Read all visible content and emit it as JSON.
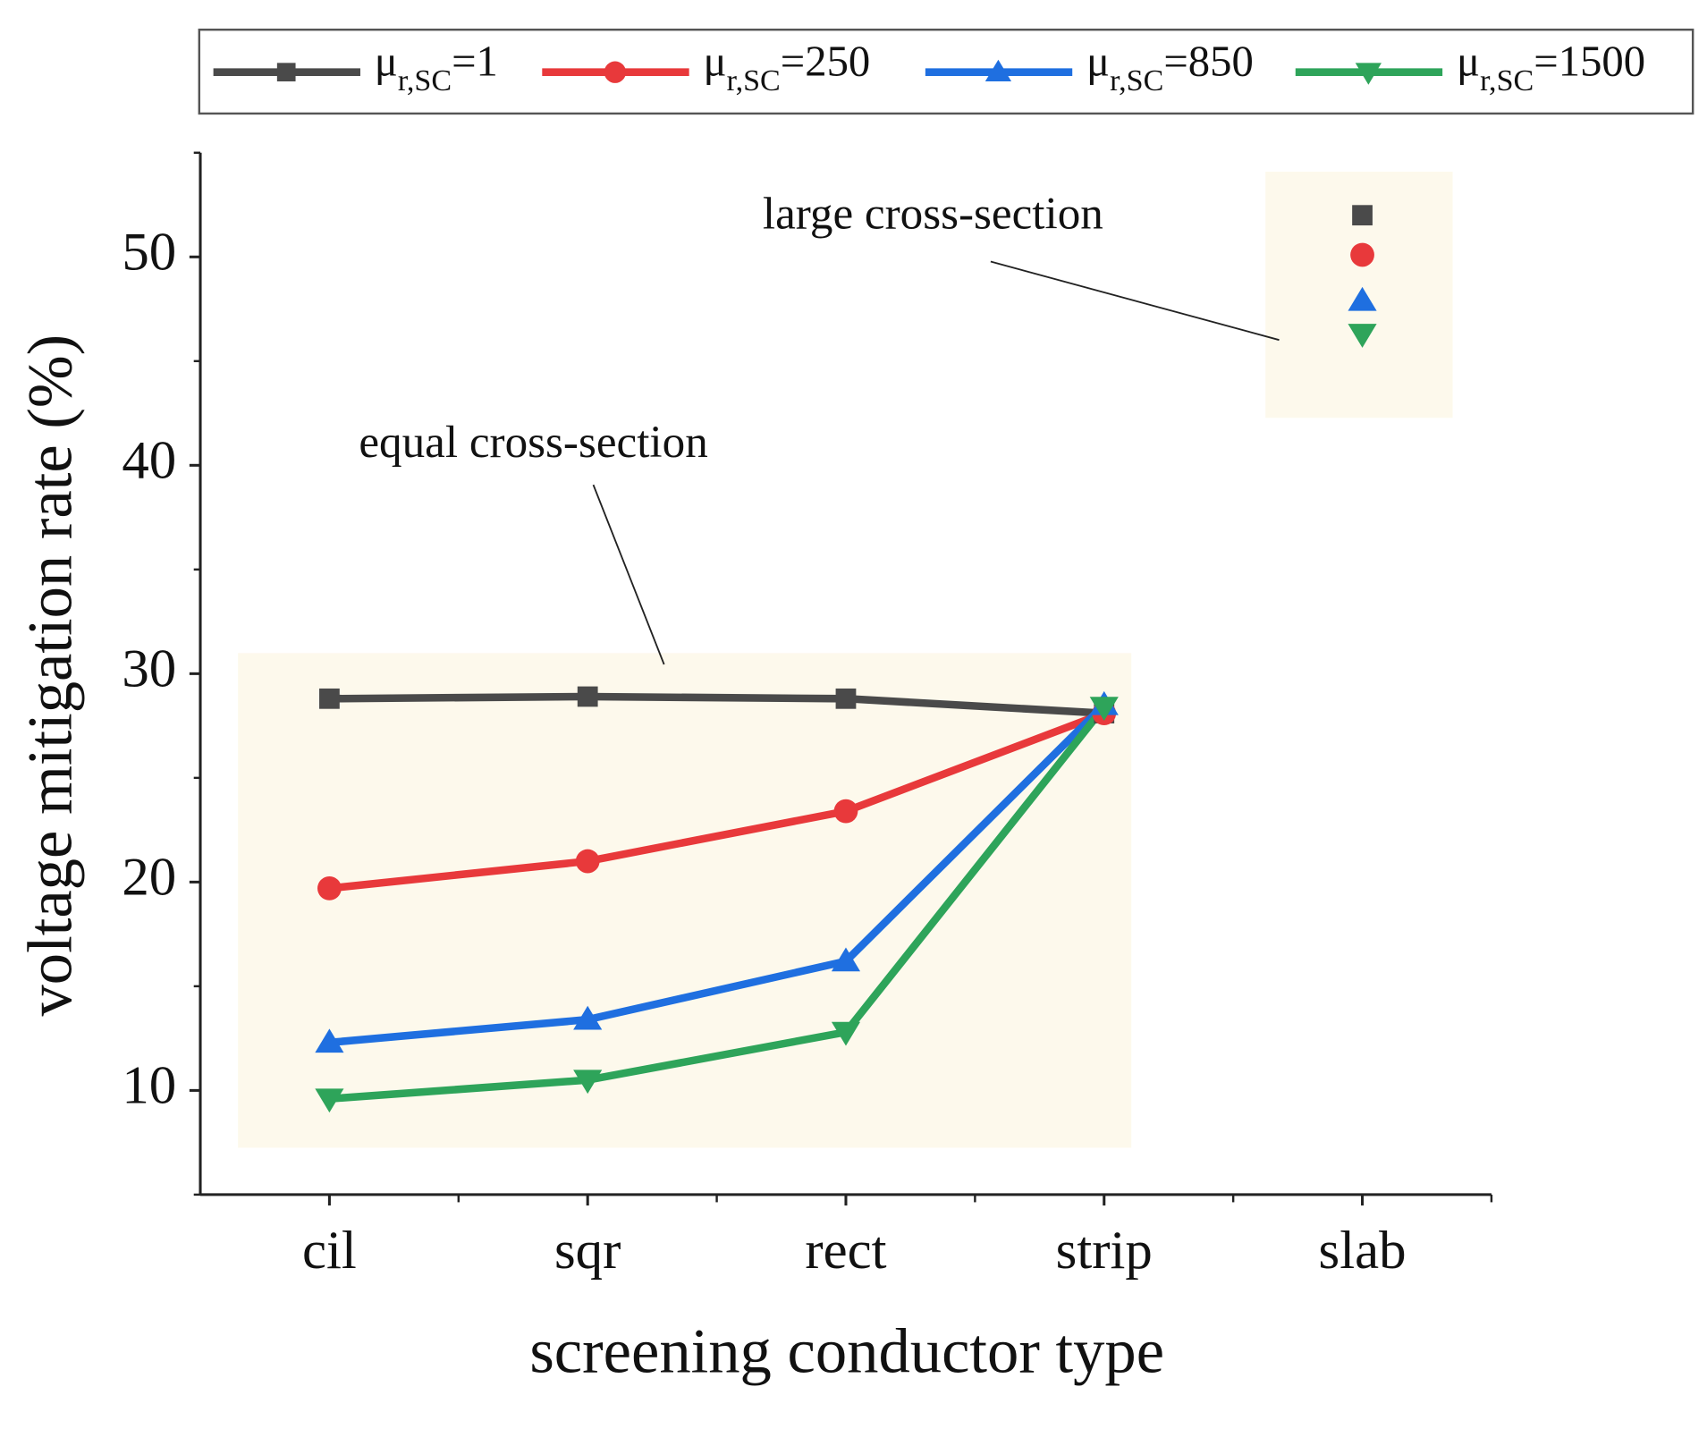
{
  "chart_data": {
    "type": "line",
    "x_label": "screening conductor type",
    "y_label": "voltage mitigation rate (%)",
    "categories": [
      "cil",
      "sqr",
      "rect",
      "strip",
      "slab"
    ],
    "ylim": [
      5,
      55
    ],
    "yticks": [
      10,
      20,
      30,
      40,
      50
    ],
    "groups": [
      {
        "label": "equal cross-section",
        "categories": [
          "cil",
          "sqr",
          "rect",
          "strip"
        ]
      },
      {
        "label": "large cross-section",
        "categories": [
          "slab"
        ]
      }
    ],
    "series": [
      {
        "name": "μr,SC=1",
        "color": "#4a4a4a",
        "marker": "square",
        "values": [
          28.8,
          28.9,
          28.8,
          28.1,
          52.0
        ]
      },
      {
        "name": "μr,SC=250",
        "color": "#e8393b",
        "marker": "circle",
        "values": [
          19.7,
          21.0,
          23.4,
          28.1,
          50.1
        ]
      },
      {
        "name": "μr,SC=850",
        "color": "#1f6fe0",
        "marker": "triangle",
        "values": [
          12.3,
          13.4,
          16.2,
          28.5,
          47.9
        ]
      },
      {
        "name": "μr,SC=1500",
        "color": "#2ea45a",
        "marker": "triangle-down",
        "values": [
          9.6,
          10.5,
          12.8,
          28.4,
          46.3
        ]
      }
    ]
  }
}
